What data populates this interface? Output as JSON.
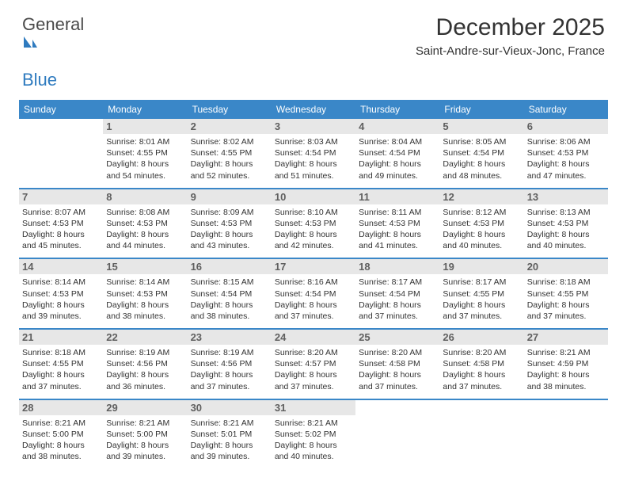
{
  "logo": {
    "text_gray": "General",
    "text_blue": "Blue"
  },
  "title": "December 2025",
  "location": "Saint-Andre-sur-Vieux-Jonc, France",
  "colors": {
    "accent": "#3a87c8",
    "band_bg": "#e7e7e7",
    "band_text": "#5f5f5f",
    "text": "#333333",
    "bg": "#ffffff"
  },
  "days_of_week": [
    "Sunday",
    "Monday",
    "Tuesday",
    "Wednesday",
    "Thursday",
    "Friday",
    "Saturday"
  ],
  "weeks": [
    [
      {
        "empty": true
      },
      {
        "day": "1",
        "sunrise": "8:01 AM",
        "sunset": "4:55 PM",
        "daylight": "8 hours and 54 minutes."
      },
      {
        "day": "2",
        "sunrise": "8:02 AM",
        "sunset": "4:55 PM",
        "daylight": "8 hours and 52 minutes."
      },
      {
        "day": "3",
        "sunrise": "8:03 AM",
        "sunset": "4:54 PM",
        "daylight": "8 hours and 51 minutes."
      },
      {
        "day": "4",
        "sunrise": "8:04 AM",
        "sunset": "4:54 PM",
        "daylight": "8 hours and 49 minutes."
      },
      {
        "day": "5",
        "sunrise": "8:05 AM",
        "sunset": "4:54 PM",
        "daylight": "8 hours and 48 minutes."
      },
      {
        "day": "6",
        "sunrise": "8:06 AM",
        "sunset": "4:53 PM",
        "daylight": "8 hours and 47 minutes."
      }
    ],
    [
      {
        "day": "7",
        "sunrise": "8:07 AM",
        "sunset": "4:53 PM",
        "daylight": "8 hours and 45 minutes."
      },
      {
        "day": "8",
        "sunrise": "8:08 AM",
        "sunset": "4:53 PM",
        "daylight": "8 hours and 44 minutes."
      },
      {
        "day": "9",
        "sunrise": "8:09 AM",
        "sunset": "4:53 PM",
        "daylight": "8 hours and 43 minutes."
      },
      {
        "day": "10",
        "sunrise": "8:10 AM",
        "sunset": "4:53 PM",
        "daylight": "8 hours and 42 minutes."
      },
      {
        "day": "11",
        "sunrise": "8:11 AM",
        "sunset": "4:53 PM",
        "daylight": "8 hours and 41 minutes."
      },
      {
        "day": "12",
        "sunrise": "8:12 AM",
        "sunset": "4:53 PM",
        "daylight": "8 hours and 40 minutes."
      },
      {
        "day": "13",
        "sunrise": "8:13 AM",
        "sunset": "4:53 PM",
        "daylight": "8 hours and 40 minutes."
      }
    ],
    [
      {
        "day": "14",
        "sunrise": "8:14 AM",
        "sunset": "4:53 PM",
        "daylight": "8 hours and 39 minutes."
      },
      {
        "day": "15",
        "sunrise": "8:14 AM",
        "sunset": "4:53 PM",
        "daylight": "8 hours and 38 minutes."
      },
      {
        "day": "16",
        "sunrise": "8:15 AM",
        "sunset": "4:54 PM",
        "daylight": "8 hours and 38 minutes."
      },
      {
        "day": "17",
        "sunrise": "8:16 AM",
        "sunset": "4:54 PM",
        "daylight": "8 hours and 37 minutes."
      },
      {
        "day": "18",
        "sunrise": "8:17 AM",
        "sunset": "4:54 PM",
        "daylight": "8 hours and 37 minutes."
      },
      {
        "day": "19",
        "sunrise": "8:17 AM",
        "sunset": "4:55 PM",
        "daylight": "8 hours and 37 minutes."
      },
      {
        "day": "20",
        "sunrise": "8:18 AM",
        "sunset": "4:55 PM",
        "daylight": "8 hours and 37 minutes."
      }
    ],
    [
      {
        "day": "21",
        "sunrise": "8:18 AM",
        "sunset": "4:55 PM",
        "daylight": "8 hours and 37 minutes."
      },
      {
        "day": "22",
        "sunrise": "8:19 AM",
        "sunset": "4:56 PM",
        "daylight": "8 hours and 36 minutes."
      },
      {
        "day": "23",
        "sunrise": "8:19 AM",
        "sunset": "4:56 PM",
        "daylight": "8 hours and 37 minutes."
      },
      {
        "day": "24",
        "sunrise": "8:20 AM",
        "sunset": "4:57 PM",
        "daylight": "8 hours and 37 minutes."
      },
      {
        "day": "25",
        "sunrise": "8:20 AM",
        "sunset": "4:58 PM",
        "daylight": "8 hours and 37 minutes."
      },
      {
        "day": "26",
        "sunrise": "8:20 AM",
        "sunset": "4:58 PM",
        "daylight": "8 hours and 37 minutes."
      },
      {
        "day": "27",
        "sunrise": "8:21 AM",
        "sunset": "4:59 PM",
        "daylight": "8 hours and 38 minutes."
      }
    ],
    [
      {
        "day": "28",
        "sunrise": "8:21 AM",
        "sunset": "5:00 PM",
        "daylight": "8 hours and 38 minutes."
      },
      {
        "day": "29",
        "sunrise": "8:21 AM",
        "sunset": "5:00 PM",
        "daylight": "8 hours and 39 minutes."
      },
      {
        "day": "30",
        "sunrise": "8:21 AM",
        "sunset": "5:01 PM",
        "daylight": "8 hours and 39 minutes."
      },
      {
        "day": "31",
        "sunrise": "8:21 AM",
        "sunset": "5:02 PM",
        "daylight": "8 hours and 40 minutes."
      },
      {
        "empty": true
      },
      {
        "empty": true
      },
      {
        "empty": true
      }
    ]
  ],
  "labels": {
    "sunrise": "Sunrise:",
    "sunset": "Sunset:",
    "daylight": "Daylight:"
  }
}
